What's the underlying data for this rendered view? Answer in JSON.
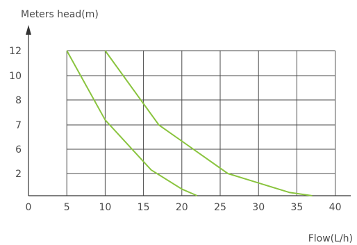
{
  "chart_data": {
    "type": "line",
    "ylabel": "Meters head(m)",
    "xlabel": "Flow(L/h)",
    "x_ticks": [
      "0",
      "5",
      "10",
      "15",
      "20",
      "25",
      "30",
      "35",
      "40"
    ],
    "y_ticks": [
      "12",
      "10",
      "8",
      "7",
      "6",
      "2"
    ],
    "xlim": [
      0,
      40
    ],
    "grid": true,
    "line_color": "#8ac43f",
    "series": [
      {
        "x": [
          5,
          10,
          16,
          20,
          22
        ],
        "y": [
          12,
          7.2,
          2.6,
          0.6,
          0
        ]
      },
      {
        "x": [
          10,
          17,
          26,
          34,
          37
        ],
        "y": [
          12,
          7,
          2,
          0.3,
          0
        ]
      }
    ]
  }
}
